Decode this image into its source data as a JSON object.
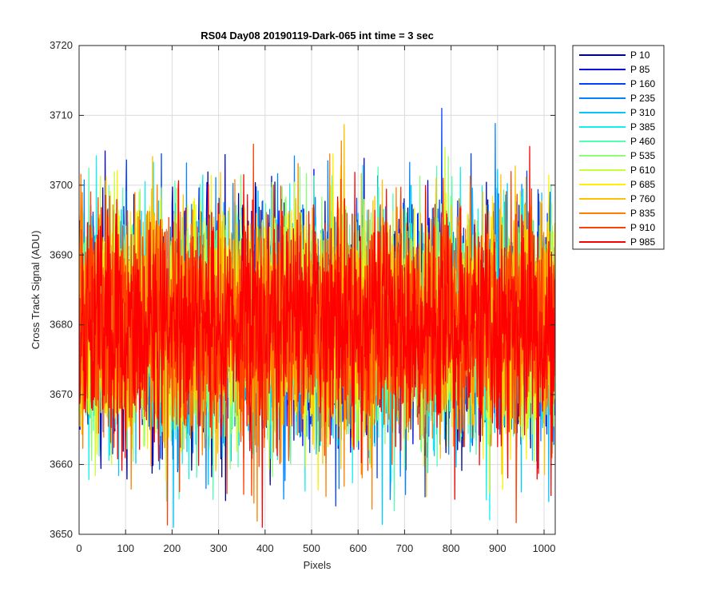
{
  "chart_data": {
    "type": "line",
    "title": "RS04 Day08 20190119-Dark-065 int time = 3 sec",
    "xlabel": "Pixels",
    "ylabel": "Cross Track Signal (ADU)",
    "xlim": [
      0,
      1024
    ],
    "ylim": [
      3650,
      3720
    ],
    "xticks": [
      0,
      100,
      200,
      300,
      400,
      500,
      600,
      700,
      800,
      900,
      1000
    ],
    "yticks": [
      3650,
      3660,
      3670,
      3680,
      3690,
      3700,
      3710,
      3720
    ],
    "grid": true,
    "legend_position": "outside-top-right",
    "noise_model": {
      "mean": 3680,
      "std": 8,
      "min": 3651,
      "max": 3711,
      "n_points": 1024
    },
    "series": [
      {
        "name": "P 10",
        "color": "#00008F"
      },
      {
        "name": "P 85",
        "color": "#0000E0"
      },
      {
        "name": "P 160",
        "color": "#0040FF"
      },
      {
        "name": "P 235",
        "color": "#0085FF"
      },
      {
        "name": "P 310",
        "color": "#00C8FF"
      },
      {
        "name": "P 385",
        "color": "#10F0EF"
      },
      {
        "name": "P 460",
        "color": "#50FFB0"
      },
      {
        "name": "P 535",
        "color": "#8AFF75"
      },
      {
        "name": "P 610",
        "color": "#C8FF38"
      },
      {
        "name": "P 685",
        "color": "#FFF000"
      },
      {
        "name": "P 760",
        "color": "#FFC000"
      },
      {
        "name": "P 835",
        "color": "#FF8000"
      },
      {
        "name": "P 910",
        "color": "#FF4000"
      },
      {
        "name": "P 985",
        "color": "#FF0000"
      }
    ]
  }
}
